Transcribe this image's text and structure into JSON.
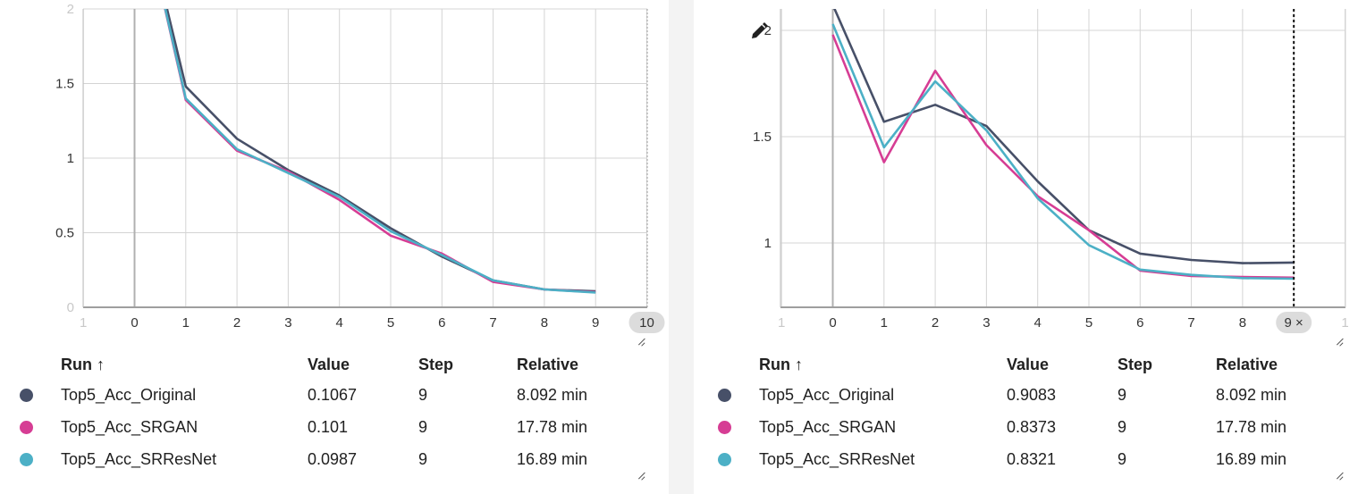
{
  "colors": {
    "original": "#475068",
    "srgan": "#d63d94",
    "srresnet": "#4cb0c6"
  },
  "table_headers": {
    "run": "Run ↑",
    "value": "Value",
    "step": "Step",
    "relative": "Relative"
  },
  "left": {
    "x_ticks": [
      "1",
      "0",
      "1",
      "2",
      "3",
      "4",
      "5",
      "6",
      "7",
      "8",
      "9",
      "10"
    ],
    "y_ticks": [
      "2",
      "1.5",
      "1",
      "0.5",
      "0"
    ],
    "rows": [
      {
        "name": "Top5_Acc_Original",
        "value": "0.1067",
        "step": "9",
        "relative": "8.092 min",
        "color": "#475068"
      },
      {
        "name": "Top5_Acc_SRGAN",
        "value": "0.101",
        "step": "9",
        "relative": "17.78 min",
        "color": "#d63d94"
      },
      {
        "name": "Top5_Acc_SRResNet",
        "value": "0.0987",
        "step": "9",
        "relative": "16.89 min",
        "color": "#4cb0c6"
      }
    ]
  },
  "right": {
    "x_ticks": [
      "1",
      "0",
      "1",
      "2",
      "3",
      "4",
      "5",
      "6",
      "7",
      "8",
      "9 ×",
      "1"
    ],
    "y_ticks": [
      "2",
      "1.5",
      "1"
    ],
    "rows": [
      {
        "name": "Top5_Acc_Original",
        "value": "0.9083",
        "step": "9",
        "relative": "8.092 min",
        "color": "#475068"
      },
      {
        "name": "Top5_Acc_SRGAN",
        "value": "0.8373",
        "step": "9",
        "relative": "17.78 min",
        "color": "#d63d94"
      },
      {
        "name": "Top5_Acc_SRResNet",
        "value": "0.8321",
        "step": "9",
        "relative": "16.89 min",
        "color": "#4cb0c6"
      }
    ]
  },
  "chart_data": [
    {
      "type": "line",
      "title": "",
      "xlabel": "",
      "ylabel": "",
      "xlim": [
        -1,
        10
      ],
      "ylim": [
        0,
        2
      ],
      "grid": true,
      "series": [
        {
          "name": "Top5_Acc_Original",
          "x": [
            0,
            1,
            2,
            3,
            4,
            5,
            6,
            7,
            8,
            9
          ],
          "values": [
            2.9,
            1.48,
            1.13,
            0.92,
            0.75,
            0.53,
            0.34,
            0.18,
            0.12,
            0.107
          ]
        },
        {
          "name": "Top5_Acc_SRGAN",
          "x": [
            0,
            1,
            2,
            3,
            4,
            5,
            6,
            7,
            8,
            9
          ],
          "values": [
            2.9,
            1.39,
            1.05,
            0.91,
            0.72,
            0.48,
            0.36,
            0.17,
            0.12,
            0.101
          ]
        },
        {
          "name": "Top5_Acc_SRResNet",
          "x": [
            0,
            1,
            2,
            3,
            4,
            5,
            6,
            7,
            8,
            9
          ],
          "values": [
            2.9,
            1.4,
            1.06,
            0.9,
            0.74,
            0.51,
            0.35,
            0.18,
            0.12,
            0.099
          ]
        }
      ]
    },
    {
      "type": "line",
      "title": "",
      "xlabel": "",
      "ylabel": "",
      "xlim": [
        -1,
        10
      ],
      "ylim": [
        0.7,
        2.1
      ],
      "grid": true,
      "series": [
        {
          "name": "Top5_Acc_Original",
          "x": [
            0,
            1,
            2,
            3,
            4,
            5,
            6,
            7,
            8,
            9
          ],
          "values": [
            2.12,
            1.57,
            1.65,
            1.55,
            1.29,
            1.06,
            0.95,
            0.92,
            0.905,
            0.908
          ]
        },
        {
          "name": "Top5_Acc_SRGAN",
          "x": [
            0,
            1,
            2,
            3,
            4,
            5,
            6,
            7,
            8,
            9
          ],
          "values": [
            1.98,
            1.38,
            1.81,
            1.46,
            1.22,
            1.06,
            0.87,
            0.845,
            0.84,
            0.837
          ]
        },
        {
          "name": "Top5_Acc_SRResNet",
          "x": [
            0,
            1,
            2,
            3,
            4,
            5,
            6,
            7,
            8,
            9
          ],
          "values": [
            2.03,
            1.45,
            1.76,
            1.53,
            1.21,
            0.99,
            0.875,
            0.85,
            0.835,
            0.832
          ]
        }
      ]
    }
  ]
}
